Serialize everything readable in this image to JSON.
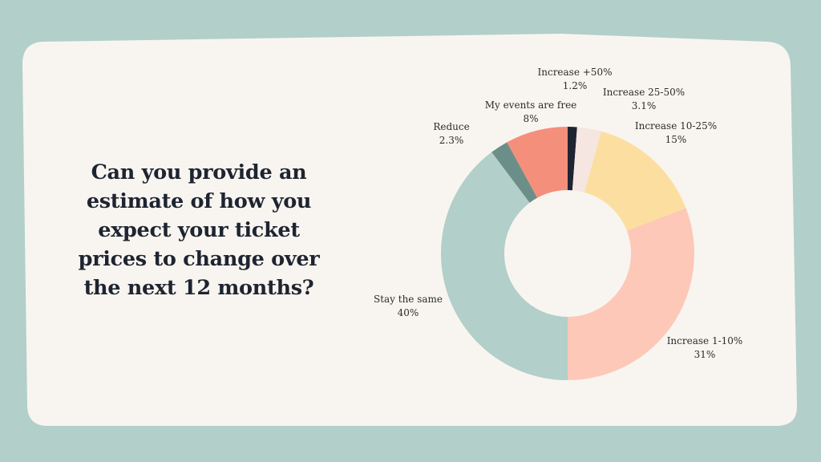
{
  "question": "Can you provide an estimate of how you expect your ticket prices to change over the next 12 months?",
  "colors": {
    "background": "#b2cfc9",
    "card": "#f8f5f0",
    "text": "#1e2431"
  },
  "chart_data": {
    "type": "pie",
    "subtype": "donut",
    "title": "",
    "slices": [
      {
        "label": "Increase +50%",
        "value": 1.2,
        "display": "1.2%",
        "color": "#1e2431"
      },
      {
        "label": "Increase 25-50%",
        "value": 3.1,
        "display": "3.1%",
        "color": "#f5e6e1"
      },
      {
        "label": "Increase 10-25%",
        "value": 15,
        "display": "15%",
        "color": "#fcdfa0"
      },
      {
        "label": "Increase 1-10%",
        "value": 31,
        "display": "31%",
        "color": "#fdc8b8"
      },
      {
        "label": "Stay the same",
        "value": 40,
        "display": "40%",
        "color": "#b2cfc9"
      },
      {
        "label": "Reduce",
        "value": 2.3,
        "display": "2.3%",
        "color": "#6b8f88"
      },
      {
        "label": "My events are free",
        "value": 8,
        "display": "8%",
        "color": "#f48f7c"
      }
    ]
  }
}
